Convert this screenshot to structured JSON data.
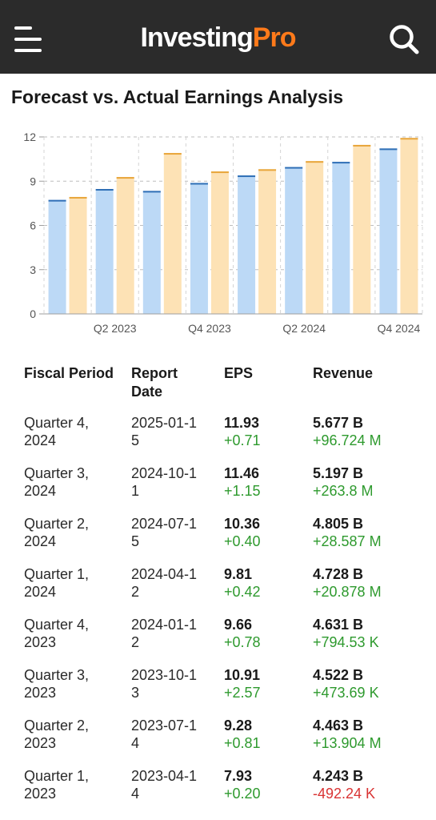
{
  "header": {
    "logo_part1": "Investing",
    "logo_part2": "Pro",
    "colors": {
      "bar": "#2b2b2b",
      "logo_accent": "#ff7a1a"
    }
  },
  "page_title": "Forecast vs. Actual Earnings Analysis",
  "chart_data": {
    "type": "bar",
    "categories": [
      "Q1 2023",
      "Q2 2023",
      "Q3 2023",
      "Q4 2023",
      "Q1 2024",
      "Q2 2024",
      "Q3 2024",
      "Q4 2024"
    ],
    "x_tick_labels": [
      "Q2 2023",
      "Q4 2023",
      "Q2 2024",
      "Q4 2024"
    ],
    "series": [
      {
        "values": [
          7.73,
          8.47,
          8.34,
          8.88,
          9.39,
          9.96,
          10.31,
          11.22
        ],
        "color": "#bcd9f6",
        "cap_color": "#2f6fb6"
      },
      {
        "values": [
          7.93,
          9.28,
          10.91,
          9.66,
          9.81,
          10.36,
          11.46,
          11.93
        ],
        "color": "#fde2b5",
        "cap_color": "#e8a53a"
      }
    ],
    "ylim": [
      0,
      12
    ],
    "yticks": [
      0,
      3,
      6,
      9,
      12
    ],
    "grid": true
  },
  "table": {
    "headers": {
      "period": "Fiscal Period",
      "date": "Report Date",
      "eps": "EPS",
      "revenue": "Revenue"
    },
    "rows": [
      {
        "period": "Quarter 4, 2024",
        "date": "2025-01-15",
        "eps": "11.93",
        "eps_diff": "+0.71",
        "revenue": "5.677 B",
        "rev_diff": "+96.724 M",
        "rev_neg": false
      },
      {
        "period": "Quarter 3, 2024",
        "date": "2024-10-11",
        "eps": "11.46",
        "eps_diff": "+1.15",
        "revenue": "5.197 B",
        "rev_diff": "+263.8 M",
        "rev_neg": false
      },
      {
        "period": "Quarter 2, 2024",
        "date": "2024-07-15",
        "eps": "10.36",
        "eps_diff": "+0.40",
        "revenue": "4.805 B",
        "rev_diff": "+28.587 M",
        "rev_neg": false
      },
      {
        "period": "Quarter 1, 2024",
        "date": "2024-04-12",
        "eps": "9.81",
        "eps_diff": "+0.42",
        "revenue": "4.728 B",
        "rev_diff": "+20.878 M",
        "rev_neg": false
      },
      {
        "period": "Quarter 4, 2023",
        "date": "2024-01-12",
        "eps": "9.66",
        "eps_diff": "+0.78",
        "revenue": "4.631 B",
        "rev_diff": "+794.53 K",
        "rev_neg": false
      },
      {
        "period": "Quarter 3, 2023",
        "date": "2023-10-13",
        "eps": "10.91",
        "eps_diff": "+2.57",
        "revenue": "4.522 B",
        "rev_diff": "+473.69 K",
        "rev_neg": false
      },
      {
        "period": "Quarter 2, 2023",
        "date": "2023-07-14",
        "eps": "9.28",
        "eps_diff": "+0.81",
        "revenue": "4.463 B",
        "rev_diff": "+13.904 M",
        "rev_neg": false
      },
      {
        "period": "Quarter 1, 2023",
        "date": "2023-04-14",
        "eps": "7.93",
        "eps_diff": "+0.20",
        "revenue": "4.243 B",
        "rev_diff": "-492.24 K",
        "rev_neg": true
      }
    ]
  }
}
